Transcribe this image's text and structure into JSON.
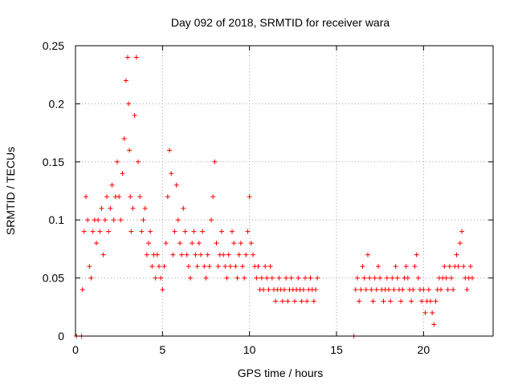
{
  "chart_data": {
    "type": "scatter",
    "title": "Day 092 of 2018, SRMTID for receiver wara",
    "xlabel": "GPS time / hours",
    "ylabel": "SRMTID / TECUs",
    "xlim": [
      0,
      24
    ],
    "ylim": [
      0,
      0.25
    ],
    "xticks": [
      0,
      5,
      10,
      15,
      20
    ],
    "xtick_labels": [
      "0",
      "5",
      "10",
      "15",
      "20"
    ],
    "yticks": [
      0,
      0.05,
      0.1,
      0.15,
      0.2,
      0.25
    ],
    "ytick_labels": [
      "0",
      "0.05",
      "0.1",
      "0.15",
      "0.2",
      "0.25"
    ],
    "grid": true,
    "marker": "+",
    "color": "#ff0000",
    "series": [
      {
        "name": "SRMTID",
        "x": [
          0.05,
          0.35,
          0.4,
          0.5,
          0.6,
          0.7,
          0.8,
          0.9,
          1.0,
          1.1,
          1.2,
          1.3,
          1.4,
          1.5,
          1.6,
          1.7,
          1.8,
          1.9,
          2.0,
          2.1,
          2.2,
          2.3,
          2.4,
          2.5,
          2.6,
          2.7,
          2.8,
          2.9,
          3.0,
          3.05,
          3.1,
          3.15,
          3.2,
          3.3,
          3.4,
          3.5,
          3.6,
          3.7,
          3.8,
          3.9,
          4.0,
          4.1,
          4.2,
          4.3,
          4.4,
          4.5,
          4.6,
          4.7,
          4.8,
          4.9,
          5.0,
          5.1,
          5.2,
          5.3,
          5.4,
          5.5,
          5.6,
          5.7,
          5.8,
          5.9,
          6.0,
          6.1,
          6.2,
          6.3,
          6.4,
          6.5,
          6.6,
          6.7,
          6.8,
          6.9,
          7.0,
          7.1,
          7.2,
          7.3,
          7.4,
          7.5,
          7.6,
          7.7,
          7.8,
          7.9,
          8.0,
          8.1,
          8.2,
          8.3,
          8.4,
          8.5,
          8.6,
          8.7,
          8.8,
          8.9,
          9.0,
          9.1,
          9.2,
          9.3,
          9.4,
          9.5,
          9.6,
          9.7,
          9.8,
          9.9,
          10.0,
          10.1,
          10.2,
          10.3,
          10.4,
          10.5,
          10.6,
          10.7,
          10.8,
          10.9,
          11.0,
          11.1,
          11.2,
          11.3,
          11.4,
          11.5,
          11.6,
          11.7,
          11.8,
          11.9,
          12.0,
          12.1,
          12.2,
          12.3,
          12.4,
          12.5,
          12.6,
          12.7,
          12.8,
          12.9,
          13.0,
          13.1,
          13.2,
          13.3,
          13.4,
          13.5,
          13.6,
          13.7,
          13.8,
          13.9,
          16.0,
          16.1,
          16.2,
          16.3,
          16.4,
          16.5,
          16.6,
          16.7,
          16.8,
          16.9,
          17.0,
          17.1,
          17.2,
          17.3,
          17.4,
          17.5,
          17.6,
          17.7,
          17.8,
          17.9,
          18.0,
          18.1,
          18.2,
          18.3,
          18.4,
          18.5,
          18.6,
          18.7,
          18.8,
          18.9,
          19.0,
          19.1,
          19.2,
          19.3,
          19.4,
          19.5,
          19.6,
          19.7,
          19.8,
          19.9,
          20.0,
          20.1,
          20.2,
          20.3,
          20.4,
          20.5,
          20.6,
          20.7,
          20.8,
          20.9,
          21.0,
          21.1,
          21.2,
          21.3,
          21.4,
          21.5,
          21.6,
          21.7,
          21.8,
          21.9,
          22.0,
          22.1,
          22.2,
          22.3,
          22.4,
          22.5,
          22.6,
          22.7,
          22.8
        ],
        "y": [
          0.0,
          0.0,
          0.04,
          0.09,
          0.12,
          0.1,
          0.06,
          0.05,
          0.09,
          0.1,
          0.08,
          0.1,
          0.09,
          0.11,
          0.07,
          0.1,
          0.12,
          0.09,
          0.11,
          0.13,
          0.1,
          0.12,
          0.15,
          0.12,
          0.1,
          0.14,
          0.17,
          0.22,
          0.24,
          0.2,
          0.16,
          0.12,
          0.09,
          0.11,
          0.19,
          0.24,
          0.15,
          0.12,
          0.09,
          0.1,
          0.11,
          0.07,
          0.08,
          0.09,
          0.06,
          0.07,
          0.05,
          0.07,
          0.06,
          0.05,
          0.04,
          0.06,
          0.08,
          0.12,
          0.16,
          0.14,
          0.07,
          0.09,
          0.13,
          0.1,
          0.08,
          0.07,
          0.11,
          0.09,
          0.07,
          0.06,
          0.05,
          0.08,
          0.09,
          0.07,
          0.06,
          0.08,
          0.07,
          0.09,
          0.06,
          0.05,
          0.07,
          0.06,
          0.1,
          0.12,
          0.15,
          0.08,
          0.06,
          0.07,
          0.09,
          0.07,
          0.06,
          0.05,
          0.07,
          0.06,
          0.09,
          0.08,
          0.06,
          0.05,
          0.07,
          0.08,
          0.06,
          0.05,
          0.07,
          0.09,
          0.12,
          0.08,
          0.07,
          0.06,
          0.05,
          0.06,
          0.04,
          0.05,
          0.04,
          0.06,
          0.05,
          0.04,
          0.06,
          0.05,
          0.04,
          0.03,
          0.04,
          0.05,
          0.04,
          0.03,
          0.04,
          0.05,
          0.03,
          0.04,
          0.05,
          0.04,
          0.03,
          0.04,
          0.05,
          0.04,
          0.03,
          0.04,
          0.05,
          0.03,
          0.04,
          0.05,
          0.04,
          0.03,
          0.04,
          0.05,
          0.0,
          0.04,
          0.05,
          0.03,
          0.04,
          0.06,
          0.05,
          0.04,
          0.07,
          0.05,
          0.04,
          0.03,
          0.05,
          0.04,
          0.06,
          0.05,
          0.04,
          0.03,
          0.04,
          0.05,
          0.04,
          0.03,
          0.05,
          0.04,
          0.06,
          0.05,
          0.04,
          0.03,
          0.04,
          0.05,
          0.06,
          0.05,
          0.04,
          0.03,
          0.04,
          0.06,
          0.07,
          0.05,
          0.04,
          0.03,
          0.04,
          0.02,
          0.03,
          0.04,
          0.03,
          0.02,
          0.01,
          0.03,
          0.04,
          0.05,
          0.04,
          0.05,
          0.06,
          0.05,
          0.04,
          0.06,
          0.05,
          0.04,
          0.06,
          0.07,
          0.06,
          0.08,
          0.09,
          0.06,
          0.05,
          0.04,
          0.05,
          0.06,
          0.05
        ]
      }
    ]
  }
}
